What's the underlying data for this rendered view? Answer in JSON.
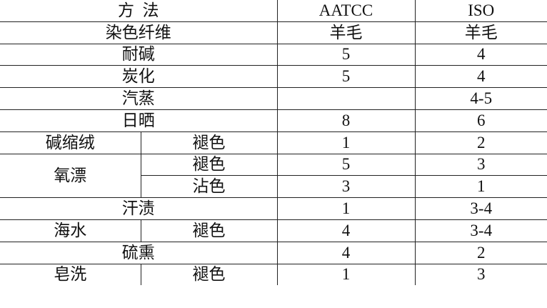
{
  "headers": {
    "method": "方  法",
    "aatcc": "AATCC",
    "iso": "ISO"
  },
  "rows": [
    {
      "label": "染色纤维",
      "aatcc": "羊毛",
      "iso": "羊毛"
    },
    {
      "label": "耐碱",
      "aatcc": "5",
      "iso": "4"
    },
    {
      "label": "炭化",
      "aatcc": "5",
      "iso": "4"
    },
    {
      "label": "汽蒸",
      "aatcc": "",
      "iso": "4-5"
    },
    {
      "label": "日晒",
      "aatcc": "8",
      "iso": "6"
    },
    {
      "label": "碱缩绒",
      "sub": "褪色",
      "aatcc": "1",
      "iso": "2"
    },
    {
      "label": "氧漂",
      "sub": "褪色",
      "aatcc": "5",
      "iso": "3"
    },
    {
      "sub": "沾色",
      "aatcc": "3",
      "iso": "1"
    },
    {
      "label": "汗渍",
      "aatcc": "1",
      "iso": "3-4"
    },
    {
      "label": "海水",
      "sub": "褪色",
      "aatcc": "4",
      "iso": "3-4"
    },
    {
      "label": "硫熏",
      "aatcc": "4",
      "iso": "2"
    },
    {
      "label": "皂洗",
      "sub": "褪色",
      "aatcc": "1",
      "iso": "3"
    }
  ]
}
